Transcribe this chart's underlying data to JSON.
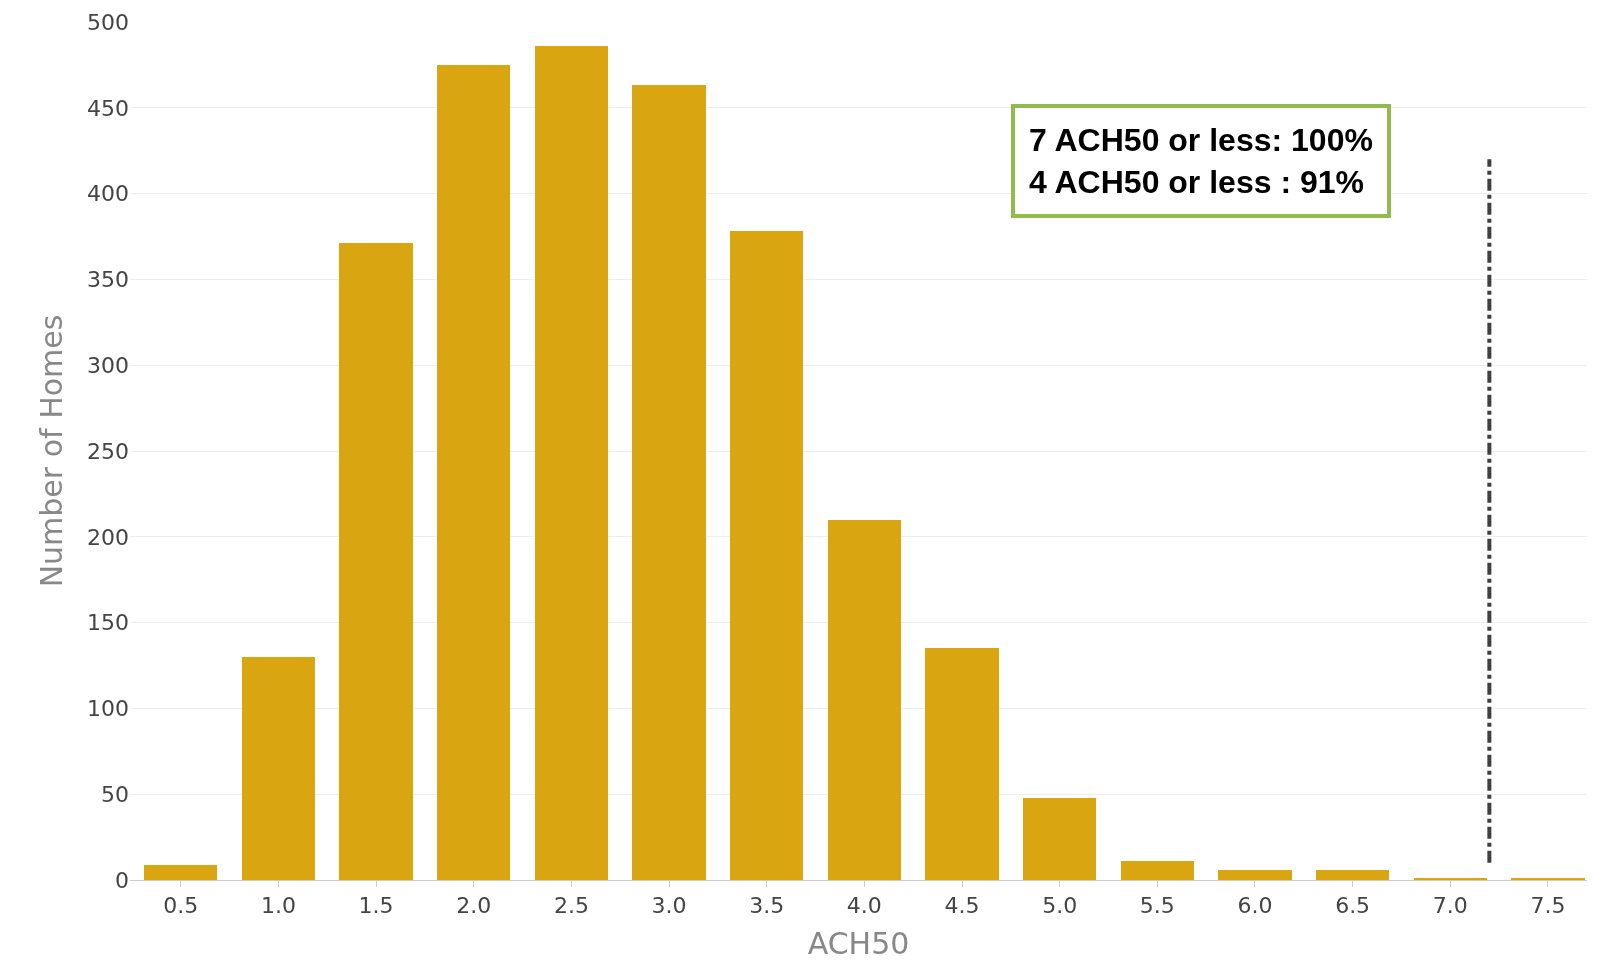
{
  "chart_data": {
    "type": "bar",
    "xlabel": "ACH50",
    "ylabel": "Number of Homes",
    "x": [
      0.5,
      1.0,
      1.5,
      2.0,
      2.5,
      3.0,
      3.5,
      4.0,
      4.5,
      5.0,
      5.5,
      6.0,
      6.5,
      7.0,
      7.5
    ],
    "values": [
      9,
      130,
      371,
      475,
      486,
      463,
      378,
      210,
      135,
      48,
      11,
      6,
      6,
      1,
      1
    ],
    "color": "#d9a510",
    "xlim": [
      0.24,
      7.7
    ],
    "xticks": [
      0.5,
      {
        "value": 1,
        "label": "1.0"
      },
      1.5,
      {
        "value": 2,
        "label": "2.0"
      },
      2.5,
      {
        "value": 3,
        "label": "3.0"
      },
      3.5,
      {
        "value": 4,
        "label": "4.0"
      },
      4.5,
      {
        "value": 5,
        "label": "5.0"
      },
      5.5,
      {
        "value": 6,
        "label": "6.0"
      },
      6.5,
      {
        "value": 7,
        "label": "7.0"
      },
      7.5
    ],
    "ylim": [
      0,
      500
    ],
    "yticks": [
      0,
      50,
      100,
      150,
      200,
      250,
      300,
      350,
      400,
      450,
      500
    ],
    "grid": "y",
    "ref_lines": [
      {
        "axis": "x",
        "value": 7.2,
        "color": "#404040",
        "line_style": "dashdot"
      }
    ],
    "annotations": [
      "7 ACH50 or less: 100%",
      "4 ACH50 or less : 91%"
    ]
  }
}
